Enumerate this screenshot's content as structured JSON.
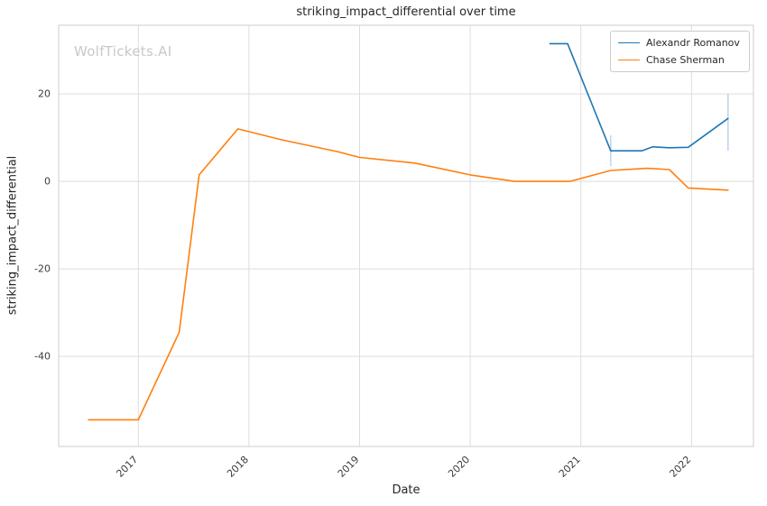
{
  "chart_data": {
    "type": "line",
    "title": "striking_impact_differential over time",
    "xlabel": "Date",
    "ylabel": "striking_impact_differential",
    "watermark": "WolfTickets.AI",
    "legend_position": "upper right",
    "grid": true,
    "xlim": [
      2016.28,
      2022.56
    ],
    "ylim": [
      -60.6,
      35.7
    ],
    "x_ticks": [
      2017,
      2018,
      2019,
      2020,
      2021,
      2022
    ],
    "y_ticks": [
      -40,
      -20,
      0,
      20
    ],
    "series": [
      {
        "name": "Alexandr Romanov",
        "color": "#1f77b4",
        "x": [
          2020.72,
          2020.88,
          2021.27,
          2021.55,
          2021.65,
          2021.8,
          2021.97,
          2022.33
        ],
        "y": [
          31.5,
          31.5,
          7.0,
          7.0,
          7.9,
          7.7,
          7.8,
          14.4
        ]
      },
      {
        "name": "Chase Sherman",
        "color": "#ff7f0e",
        "x": [
          2016.55,
          2016.8,
          2017.0,
          2017.37,
          2017.55,
          2017.9,
          2018.3,
          2018.8,
          2019.0,
          2019.5,
          2020.0,
          2020.4,
          2020.9,
          2021.27,
          2021.6,
          2021.8,
          2021.97,
          2022.33
        ],
        "y": [
          -54.5,
          -54.5,
          -54.5,
          -34.5,
          1.5,
          12.0,
          9.5,
          6.8,
          5.5,
          4.2,
          1.5,
          0.0,
          0.0,
          2.5,
          3.0,
          2.7,
          -1.5,
          -2.0
        ]
      }
    ],
    "confidence_intervals": [
      {
        "series": "Alexandr Romanov",
        "x": 2021.27,
        "y0": 3.5,
        "y1": 10.5,
        "color": "#aec7e8"
      },
      {
        "series": "Alexandr Romanov",
        "x": 2022.33,
        "y0": 7.0,
        "y1": 20.0,
        "color": "#aec7e8"
      }
    ]
  }
}
